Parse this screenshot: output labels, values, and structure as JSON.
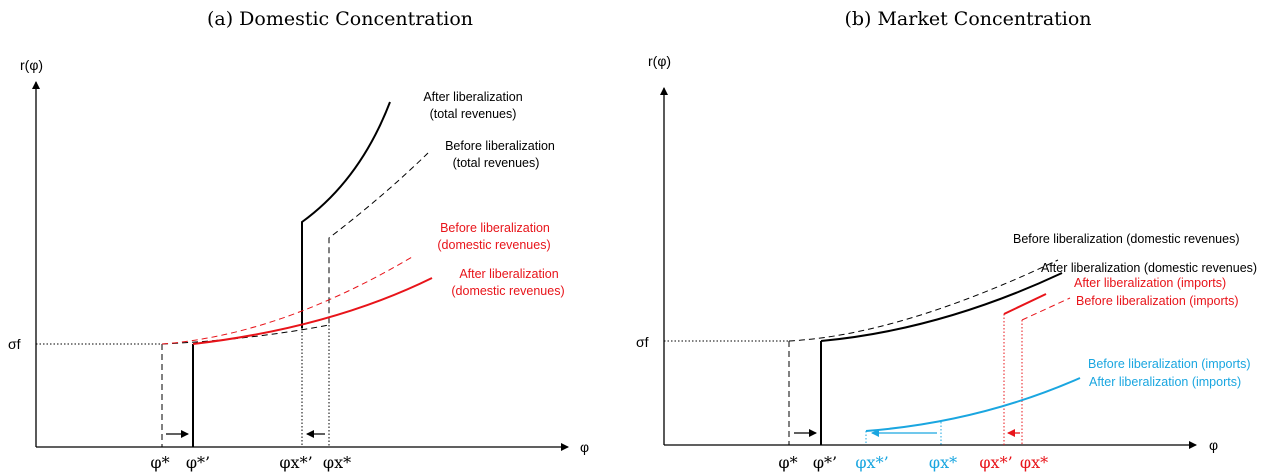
{
  "colors": {
    "black": "#000000",
    "red": "#e8141a",
    "blue": "#1aa6e0"
  },
  "panel_a": {
    "title": "(a) Domestic Concentration",
    "y_axis_label": "r(φ)",
    "x_axis_label": "φ",
    "sigma_f_label": "σf",
    "ticks": {
      "phi_star": "φ*",
      "phi_star_prime": "φ*’",
      "phi_x_star_prime": "φx*’",
      "phi_x_star": "φx*"
    },
    "labels": {
      "after_total_line1": "After liberalization",
      "after_total_line2": "(total revenues)",
      "before_total_line1": "Before liberalization",
      "before_total_line2": "(total revenues)",
      "before_domestic_line1": "Before liberalization",
      "before_domestic_line2": "(domestic revenues)",
      "after_domestic_line1": "After liberalization",
      "after_domestic_line2": "(domestic revenues)"
    }
  },
  "panel_b": {
    "title": "(b) Market Concentration",
    "y_axis_label": "r(φ)",
    "x_axis_label": "φ",
    "sigma_f_label": "σf",
    "ticks": {
      "phi_star": "φ*",
      "phi_star_prime": "φ*’",
      "phi_x_star_prime_blue": "φx*’",
      "phi_x_star_blue": "φx*",
      "phi_x_star_prime_red": "φx*’",
      "phi_x_star_red": "φx*"
    },
    "labels": {
      "before_domestic": "Before liberalization (domestic revenues)",
      "after_domestic": "After liberalization  (domestic revenues)",
      "after_imports_red": "After liberalization (imports)",
      "before_imports_red": "Before liberalization (imports)",
      "before_imports_blue": "Before liberalization (imports)",
      "after_imports_blue": "After liberalization (imports)"
    }
  }
}
